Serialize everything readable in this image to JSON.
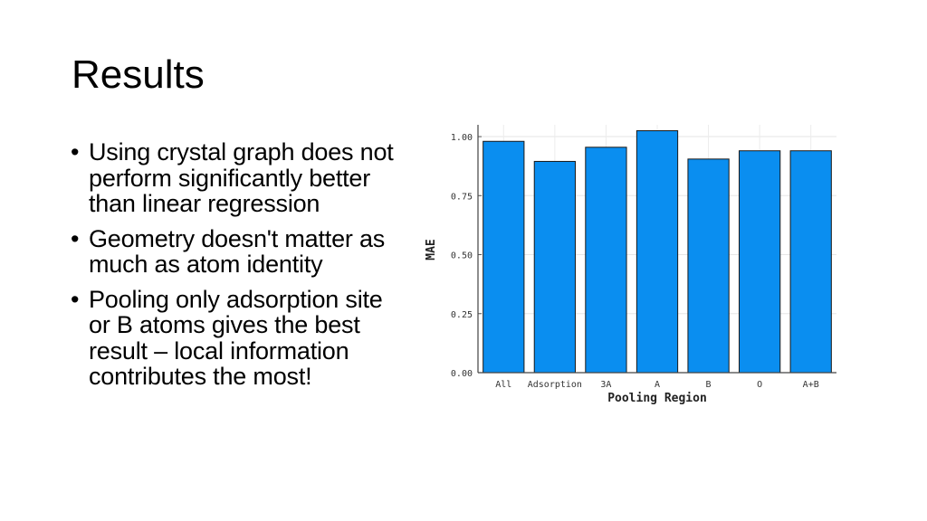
{
  "slide": {
    "title": "Results",
    "bullets": [
      "Using crystal graph does not perform significantly better than linear regression",
      "Geometry doesn't matter as much as atom identity",
      "Pooling only adsorption site or B atoms gives the best result – local information contributes the most!"
    ]
  },
  "chart_data": {
    "type": "bar",
    "categories": [
      "All",
      "Adsorption",
      "3A",
      "A",
      "B",
      "O",
      "A+B"
    ],
    "values": [
      0.98,
      0.895,
      0.955,
      1.025,
      0.905,
      0.94,
      0.94
    ],
    "title": "",
    "xlabel": "Pooling Region",
    "ylabel": "MAE",
    "ylim": [
      0,
      1.05
    ],
    "yticks": [
      0.0,
      0.25,
      0.5,
      0.75,
      1.0
    ],
    "ytick_labels": [
      "0.00",
      "0.25",
      "0.50",
      "0.75",
      "1.00"
    ],
    "grid": true,
    "bar_color": "#0a8ef0",
    "bar_edge_color": "#1a1a1a"
  }
}
